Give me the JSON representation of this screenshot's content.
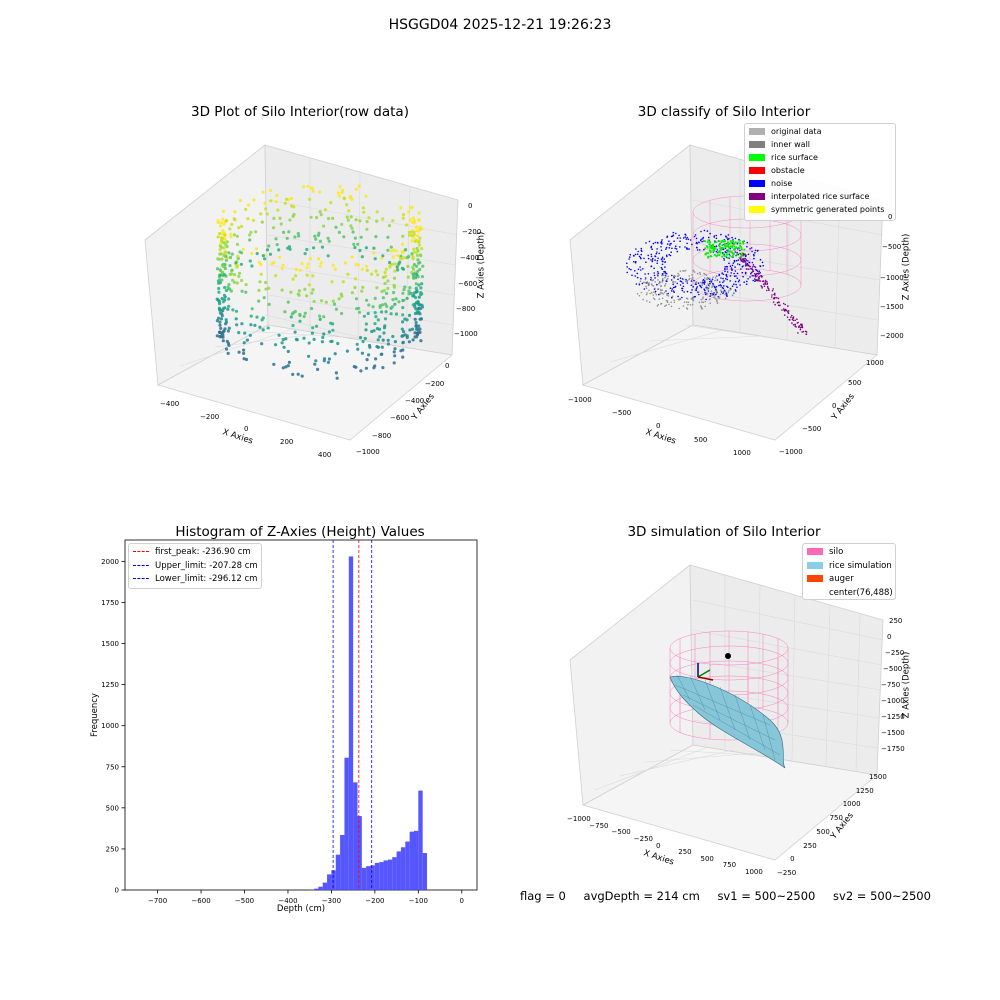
{
  "figure": {
    "suptitle": "HSGGD04 2025-12-21 19:26:23"
  },
  "panel1": {
    "title": "3D Plot of Silo Interior(row data)",
    "xlabel": "X Axies",
    "ylabel": "Y Axies",
    "zlabel": "Z Axies (Depth)",
    "x_ticks": [
      "−400",
      "−200",
      "0",
      "200",
      "400"
    ],
    "y_ticks": [
      "0",
      "−200",
      "−400",
      "−600",
      "−800",
      "−1000"
    ],
    "z_ticks": [
      "0",
      "−200",
      "−400",
      "−600",
      "−800",
      "−1000"
    ]
  },
  "panel2": {
    "title": "3D classify of Silo Interior",
    "xlabel": "X Axies",
    "ylabel": "Y Axies",
    "zlabel": "Z Axies (Depth)",
    "x_ticks": [
      "−1000",
      "−500",
      "0",
      "500",
      "1000"
    ],
    "y_ticks": [
      "1000",
      "500",
      "0",
      "−500",
      "−1000"
    ],
    "z_ticks": [
      "0",
      "−500",
      "−1000",
      "−1500",
      "−2000"
    ],
    "legend": [
      {
        "label": "original data",
        "color": "#b0b0b0"
      },
      {
        "label": "inner wall",
        "color": "#808080"
      },
      {
        "label": "rice surface",
        "color": "#00ff00"
      },
      {
        "label": "obstacle",
        "color": "#ff0000"
      },
      {
        "label": "noise",
        "color": "#0000ff"
      },
      {
        "label": "interpolated rice surface",
        "color": "#800080"
      },
      {
        "label": "symmetric generated points",
        "color": "#ffff00"
      }
    ]
  },
  "panel4": {
    "title": "3D simulation of Silo Interior",
    "xlabel": "X Axies",
    "ylabel": "Y Axies",
    "zlabel": "Z Axies (Depth)",
    "x_ticks": [
      "−1000",
      "−750",
      "−500",
      "−250",
      "0",
      "250",
      "500",
      "750",
      "1000"
    ],
    "y_ticks": [
      "1500",
      "1250",
      "1000",
      "750",
      "500",
      "250",
      "0",
      "−250"
    ],
    "z_ticks": [
      "250",
      "0",
      "−250",
      "−500",
      "−750",
      "−1000",
      "−1250",
      "−1500",
      "−1750"
    ],
    "legend": [
      {
        "label": "silo",
        "color": "#ff69b4"
      },
      {
        "label": "rice simulation",
        "color": "#87ceeb"
      },
      {
        "label": "auger",
        "color": "#ff4500"
      },
      {
        "label": "center(76,488)",
        "color": ""
      }
    ]
  },
  "chart_data": {
    "type": "bar",
    "title": "Histogram of Z-Axies (Height) Values",
    "xlabel": "Depth (cm)",
    "ylabel": "Frequency",
    "xlim": [
      -775,
      35
    ],
    "ylim": [
      0,
      2130
    ],
    "x_ticks": [
      -700,
      -600,
      -500,
      -400,
      -300,
      -200,
      -100,
      0
    ],
    "y_ticks": [
      0,
      250,
      500,
      750,
      1000,
      1250,
      1500,
      1750,
      2000
    ],
    "bar_color": "#4d4dff",
    "bins": [
      {
        "x0": -350,
        "x1": -340,
        "v": 2
      },
      {
        "x0": -340,
        "x1": -330,
        "v": 8
      },
      {
        "x0": -330,
        "x1": -320,
        "v": 20
      },
      {
        "x0": -320,
        "x1": -310,
        "v": 45
      },
      {
        "x0": -310,
        "x1": -300,
        "v": 95
      },
      {
        "x0": -300,
        "x1": -290,
        "v": 120
      },
      {
        "x0": -290,
        "x1": -280,
        "v": 215
      },
      {
        "x0": -280,
        "x1": -270,
        "v": 335
      },
      {
        "x0": -270,
        "x1": -260,
        "v": 805
      },
      {
        "x0": -260,
        "x1": -250,
        "v": 2030
      },
      {
        "x0": -250,
        "x1": -240,
        "v": 655
      },
      {
        "x0": -240,
        "x1": -230,
        "v": 450
      },
      {
        "x0": -230,
        "x1": -220,
        "v": 135
      },
      {
        "x0": -220,
        "x1": -210,
        "v": 145
      },
      {
        "x0": -210,
        "x1": -200,
        "v": 150
      },
      {
        "x0": -200,
        "x1": -190,
        "v": 165
      },
      {
        "x0": -190,
        "x1": -180,
        "v": 170
      },
      {
        "x0": -180,
        "x1": -170,
        "v": 180
      },
      {
        "x0": -170,
        "x1": -160,
        "v": 185
      },
      {
        "x0": -160,
        "x1": -150,
        "v": 200
      },
      {
        "x0": -150,
        "x1": -140,
        "v": 235
      },
      {
        "x0": -140,
        "x1": -130,
        "v": 260
      },
      {
        "x0": -130,
        "x1": -120,
        "v": 295
      },
      {
        "x0": -120,
        "x1": -110,
        "v": 355
      },
      {
        "x0": -110,
        "x1": -100,
        "v": 360
      },
      {
        "x0": -100,
        "x1": -90,
        "v": 605
      },
      {
        "x0": -90,
        "x1": -80,
        "v": 225
      }
    ],
    "lines": [
      {
        "label": "first_peak: -236.90 cm",
        "x": -236.9,
        "color": "#ff0000"
      },
      {
        "label": "Upper_limit: -207.28 cm",
        "x": -207.28,
        "color": "#0000ff"
      },
      {
        "label": "Lower_limit: -296.12 cm",
        "x": -296.12,
        "color": "#0000ff"
      }
    ]
  },
  "status": {
    "flag": "flag = 0",
    "avg_depth": "avgDepth = 214 cm",
    "sv1": "sv1 = 500~2500",
    "sv2": "sv2 = 500~2500"
  }
}
